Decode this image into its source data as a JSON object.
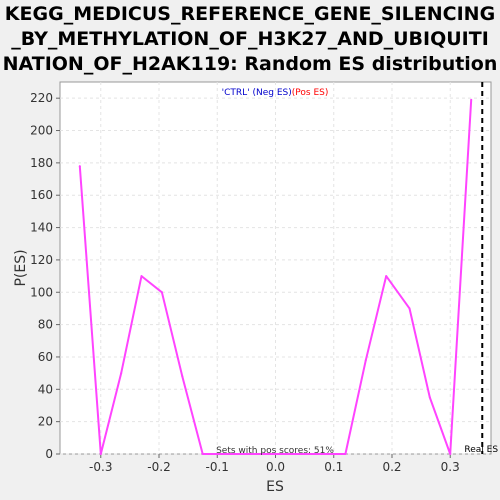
{
  "chart_data": {
    "type": "line",
    "title_lines": [
      "KEGG_MEDICUS_REFERENCE_GENE_SILENCING",
      "_BY_METHYLATION_OF_H3K27_AND_UBIQUITI",
      "NATION_OF_H2AK119: Random ES distribution"
    ],
    "xlabel": "ES",
    "ylabel": "P(ES)",
    "xlim": [
      -0.37,
      0.37
    ],
    "ylim": [
      0,
      230
    ],
    "x_ticks": [
      -0.3,
      -0.2,
      -0.1,
      0.0,
      0.1,
      0.2,
      0.3
    ],
    "x_tick_labels": [
      "-0.3",
      "-0.2",
      "-0.1",
      "0.0",
      "0.1",
      "0.2",
      "0.3"
    ],
    "y_ticks": [
      0,
      20,
      40,
      60,
      80,
      100,
      120,
      140,
      160,
      180,
      200,
      220
    ],
    "y_tick_labels": [
      "0",
      "20",
      "40",
      "60",
      "80",
      "100",
      "120",
      "140",
      "160",
      "180",
      "200",
      "220"
    ],
    "grid": true,
    "legend": {
      "ctrl_text": "'CTRL' (Neg ES)",
      "pos_text": "(Pos ES)",
      "ctrl_color": "#0000cc",
      "pos_color": "#ff0000"
    },
    "series": [
      {
        "color": "#ff44ff",
        "x": [
          -0.336,
          -0.3,
          -0.265,
          -0.23,
          -0.195,
          -0.16,
          -0.125,
          -0.09,
          -0.055,
          -0.02,
          0.015,
          0.05,
          0.085,
          0.12,
          0.155,
          0.19,
          0.23,
          0.265,
          0.3,
          0.336
        ],
        "y": [
          178,
          0,
          50,
          110,
          100,
          48,
          0,
          0,
          0,
          0,
          0,
          0,
          0,
          0,
          58,
          110,
          90,
          35,
          0,
          219
        ]
      }
    ],
    "real_es": {
      "x": 0.355,
      "label": "Real ES",
      "color": "#000000"
    },
    "footnote": "Sets with pos scores: 51%"
  }
}
